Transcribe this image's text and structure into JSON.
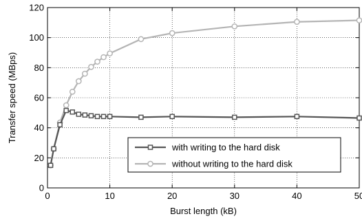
{
  "chart_data": {
    "type": "line",
    "title": "",
    "xlabel": "Burst length (kB)",
    "ylabel": "Transfer speed (MBps)",
    "xlim": [
      0,
      50
    ],
    "ylim": [
      0,
      120
    ],
    "xticks": [
      0,
      10,
      20,
      30,
      40,
      50
    ],
    "yticks": [
      0,
      20,
      40,
      60,
      80,
      100,
      120
    ],
    "grid": true,
    "legend_position": "lower-right",
    "series": [
      {
        "name": "with writing to the hard disk",
        "color": "#555555",
        "marker": "square",
        "x": [
          0.5,
          1,
          2,
          3,
          4,
          5,
          6,
          7,
          8,
          9,
          10,
          15,
          20,
          30,
          40,
          50
        ],
        "y": [
          15,
          26,
          42,
          51.5,
          50.5,
          49,
          48.5,
          48,
          47.5,
          47.5,
          47.5,
          47,
          47.5,
          47,
          47.5,
          46.5
        ]
      },
      {
        "name": "without writing to the hard disk",
        "color": "#b4b4b4",
        "marker": "circle",
        "x": [
          0.5,
          1,
          2,
          3,
          4,
          5,
          6,
          7,
          8,
          9,
          10,
          15,
          20,
          30,
          40,
          50
        ],
        "y": [
          15,
          26,
          43.5,
          55,
          64,
          71,
          76,
          80.5,
          84,
          87,
          89.5,
          99,
          103,
          107.5,
          110.5,
          111.5
        ]
      }
    ]
  }
}
